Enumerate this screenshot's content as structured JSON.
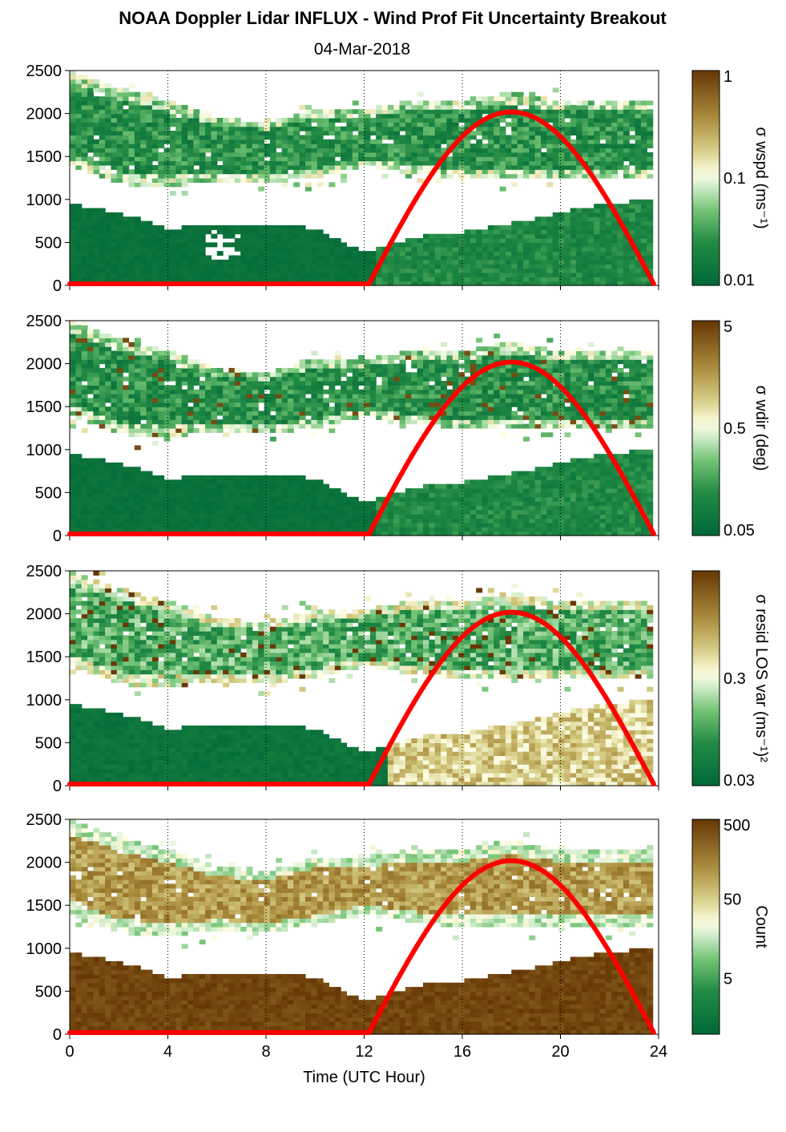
{
  "title": "NOAA Doppler Lidar INFLUX - Wind Prof Fit Uncertainty Breakout",
  "subtitle": "04-Mar-2018",
  "chart_data": [
    {
      "type": "heatmap",
      "variable": "σ wspd (ms-1)",
      "colorbar_label": "σ wspd (ms⁻¹)",
      "colorbar_ticks": [
        "1",
        "0.1",
        "0.01"
      ],
      "colorbar_scale": "log",
      "colorbar_range": [
        0.01,
        1
      ],
      "y_ticks": [
        "2500",
        "2000",
        "1500",
        "1000",
        "500",
        "0"
      ],
      "x_ticks": [],
      "xlim": [
        0,
        24
      ],
      "ylim": [
        0,
        2500
      ],
      "palette": "dark green to white to brown",
      "overlay_line": {
        "color": "#ff0000",
        "peak_x": 18,
        "peak_y": 2000,
        "rise_x": 12.2,
        "set_x": 23.8
      },
      "data_regions": {
        "lower_top": [
          [
            0,
            950
          ],
          [
            3,
            650
          ],
          [
            6,
            700
          ],
          [
            9,
            650
          ],
          [
            12,
            400
          ],
          [
            15,
            600
          ],
          [
            18,
            700
          ],
          [
            21,
            900
          ],
          [
            24,
            1000
          ]
        ]
      }
    },
    {
      "type": "heatmap",
      "variable": "σ wdir (deg)",
      "colorbar_label": "σ wdir (deg)",
      "colorbar_ticks": [
        "5",
        "0.5",
        "0.05"
      ],
      "colorbar_scale": "log",
      "colorbar_range": [
        0.05,
        5
      ],
      "y_ticks": [
        "2500",
        "2000",
        "1500",
        "1000",
        "500",
        "0"
      ],
      "x_ticks": [],
      "xlim": [
        0,
        24
      ],
      "ylim": [
        0,
        2500
      ],
      "palette": "dark green to white to brown",
      "overlay_line": {
        "color": "#ff0000",
        "peak_x": 18,
        "peak_y": 2000,
        "rise_x": 12.2,
        "set_x": 23.8
      }
    },
    {
      "type": "heatmap",
      "variable": "σ resid LOS var (ms-1)2",
      "colorbar_label": "σ resid LOS var (ms⁻¹)²",
      "colorbar_ticks": [
        "0.3",
        "0.03"
      ],
      "colorbar_scale": "log",
      "colorbar_range": [
        0.03,
        3
      ],
      "y_ticks": [
        "2500",
        "2000",
        "1500",
        "1000",
        "500",
        "0"
      ],
      "x_ticks": [],
      "xlim": [
        0,
        24
      ],
      "ylim": [
        0,
        2500
      ],
      "palette": "dark green to white to brown",
      "overlay_line": {
        "color": "#ff0000",
        "peak_x": 18,
        "peak_y": 2000,
        "rise_x": 12.2,
        "set_x": 23.8
      }
    },
    {
      "type": "heatmap",
      "variable": "Count",
      "colorbar_label": "Count",
      "colorbar_ticks": [
        "500",
        "50",
        "5"
      ],
      "colorbar_scale": "log",
      "colorbar_range": [
        1,
        500
      ],
      "y_ticks": [
        "2500",
        "2000",
        "1500",
        "1000",
        "500",
        "0"
      ],
      "x_ticks": [
        "0",
        "4",
        "8",
        "12",
        "16",
        "20",
        "24"
      ],
      "xlabel": "Time (UTC Hour)",
      "xlim": [
        0,
        24
      ],
      "ylim": [
        0,
        2500
      ],
      "palette": "dark green to white to brown",
      "overlay_line": {
        "color": "#ff0000",
        "peak_x": 18,
        "peak_y": 2000,
        "rise_x": 12.2,
        "set_x": 23.8
      }
    }
  ]
}
